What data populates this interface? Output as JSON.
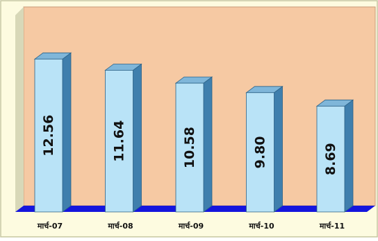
{
  "chart_data": {
    "type": "bar",
    "title": "",
    "xlabel": "",
    "ylabel": "",
    "categories": [
      "मार्च-07",
      "मार्च-08",
      "मार्च-09",
      "मार्च-10",
      "मार्च-11"
    ],
    "values": [
      12.56,
      11.64,
      10.58,
      9.8,
      8.69
    ],
    "value_labels": [
      "12.56",
      "11.64",
      "10.58",
      "9.80",
      "8.69"
    ],
    "ylim": [
      0,
      14
    ],
    "grid": false,
    "legend": "none",
    "colors": {
      "outer_background": "#fdfbe0",
      "outer_border": "#c7c7a0",
      "wall": "#f6c9a3",
      "wall_left": "#d8d8b8",
      "floor": "#1515dd",
      "bar_front": "#b9e3f7",
      "bar_top": "#7fb6d9",
      "bar_side": "#3f7fad",
      "bar_edge": "#2c6287",
      "label_text": "#111111"
    }
  }
}
